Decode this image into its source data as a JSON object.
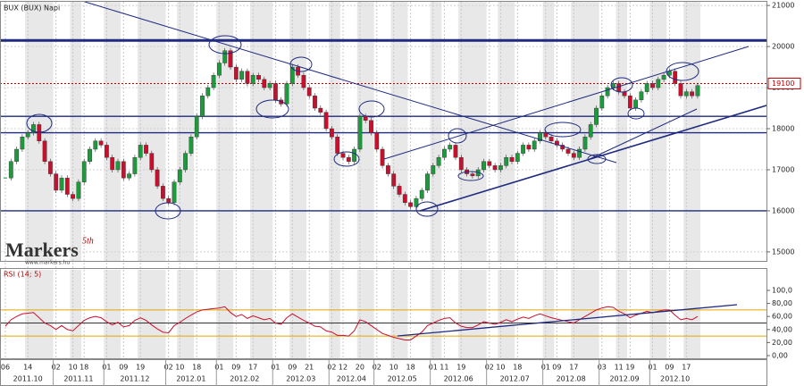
{
  "chart_data": {
    "type": "candlestick",
    "title": "BUX (BUX)  Napi",
    "categories": [
      "06",
      null,
      null,
      null,
      "14",
      null,
      null,
      null,
      null,
      "02",
      null,
      null,
      "10",
      null,
      "18",
      null,
      null,
      null,
      "01",
      null,
      null,
      "09",
      null,
      null,
      "19",
      null,
      null,
      null,
      null,
      "02",
      null,
      "10",
      null,
      null,
      "18",
      null,
      null,
      null,
      "01",
      null,
      null,
      "09",
      null,
      null,
      "17",
      null,
      null,
      null,
      "01",
      null,
      null,
      "09",
      null,
      null,
      "21",
      null,
      null,
      null,
      "02",
      null,
      "12",
      null,
      null,
      "20",
      null,
      null,
      "02",
      null,
      null,
      "10",
      null,
      null,
      "18",
      null,
      null,
      null,
      "01",
      null,
      "11",
      null,
      null,
      "19",
      null,
      null,
      null,
      null,
      "02",
      null,
      "10",
      null,
      null,
      "18",
      null,
      null,
      null,
      null,
      "01",
      null,
      "09",
      null,
      null,
      "17",
      null,
      null,
      null,
      null,
      "03",
      null,
      null,
      "11",
      null,
      "19",
      null,
      null,
      null,
      "01",
      null,
      null,
      "09",
      null,
      null,
      "17",
      null,
      null
    ],
    "months": [
      "2011.10",
      "2011.11",
      "2011.12",
      "2012.01",
      "2012.02",
      "2012.03",
      "2012.04",
      "2012.05",
      "2012.06",
      "2012.07",
      "2012.08",
      "2012.09",
      "2012.10"
    ],
    "close": [
      16800,
      17200,
      17500,
      17800,
      17900,
      18100,
      17700,
      17200,
      16900,
      16500,
      16800,
      16400,
      16300,
      16700,
      17200,
      17500,
      17700,
      17600,
      17300,
      17000,
      17200,
      16800,
      16900,
      17300,
      17600,
      17400,
      17000,
      16600,
      16300,
      16200,
      16700,
      17000,
      17400,
      17800,
      18300,
      18800,
      19000,
      19300,
      19600,
      19900,
      19500,
      19200,
      19400,
      19100,
      19300,
      19200,
      19000,
      19100,
      18700,
      18600,
      19100,
      19500,
      19300,
      19000,
      18800,
      18500,
      18400,
      18000,
      17800,
      17400,
      17300,
      17200,
      17500,
      18300,
      18200,
      17900,
      17500,
      17100,
      16900,
      16600,
      16400,
      16200,
      16100,
      16300,
      16500,
      16900,
      17100,
      17300,
      17500,
      17600,
      17300,
      17000,
      16900,
      16850,
      17000,
      17200,
      17100,
      17000,
      17100,
      17300,
      17200,
      17400,
      17600,
      17500,
      17700,
      17900,
      17800,
      17700,
      17600,
      17500,
      17400,
      17300,
      17500,
      17800,
      18100,
      18500,
      18800,
      19000,
      19100,
      18900,
      18800,
      18500,
      18700,
      18900,
      19100,
      19000,
      19200,
      19300,
      19400,
      19100,
      18800,
      18900,
      18800,
      19050
    ],
    "ylim": [
      14780,
      21090
    ],
    "yticks": [
      15000,
      16000,
      17000,
      18000,
      19000,
      20000,
      21000
    ],
    "levels": [
      20150,
      18300,
      17900,
      16000
    ],
    "last_level": 19100,
    "colors": {
      "up": "#1d9a3c",
      "down": "#c8102e"
    },
    "logo": "Markers",
    "logo_sup": "5th",
    "logo_url": "www.markers.hu",
    "rsi": {
      "title": "RSI (14; 5)",
      "values": [
        45,
        55,
        60,
        64,
        65,
        66,
        58,
        50,
        46,
        40,
        46,
        40,
        38,
        46,
        54,
        58,
        60,
        58,
        52,
        47,
        51,
        44,
        46,
        54,
        58,
        54,
        47,
        41,
        36,
        35,
        46,
        51,
        57,
        62,
        67,
        70,
        71,
        72,
        73,
        75,
        66,
        60,
        63,
        57,
        61,
        58,
        55,
        57,
        50,
        48,
        58,
        64,
        59,
        54,
        50,
        45,
        44,
        38,
        36,
        31,
        31,
        30,
        38,
        55,
        52,
        46,
        40,
        34,
        31,
        28,
        26,
        24,
        24,
        30,
        36,
        46,
        50,
        54,
        57,
        58,
        50,
        45,
        43,
        43,
        47,
        52,
        50,
        48,
        51,
        55,
        52,
        56,
        59,
        57,
        61,
        64,
        61,
        58,
        56,
        54,
        52,
        50,
        55,
        60,
        65,
        70,
        73,
        75,
        74,
        68,
        64,
        58,
        62,
        65,
        68,
        66,
        68,
        70,
        70,
        62,
        55,
        57,
        55,
        60
      ],
      "ylim": [
        -5.5,
        131.5
      ],
      "yticks": [
        {
          "value": 0,
          "label": "0,00"
        },
        {
          "value": 20,
          "label": "20,00"
        },
        {
          "value": 40,
          "label": "40,00"
        },
        {
          "value": 60,
          "label": "60,00"
        },
        {
          "value": 80,
          "label": "80,00"
        },
        {
          "value": 100,
          "label": "100,0"
        }
      ],
      "levels": [
        70,
        50,
        30
      ]
    }
  }
}
